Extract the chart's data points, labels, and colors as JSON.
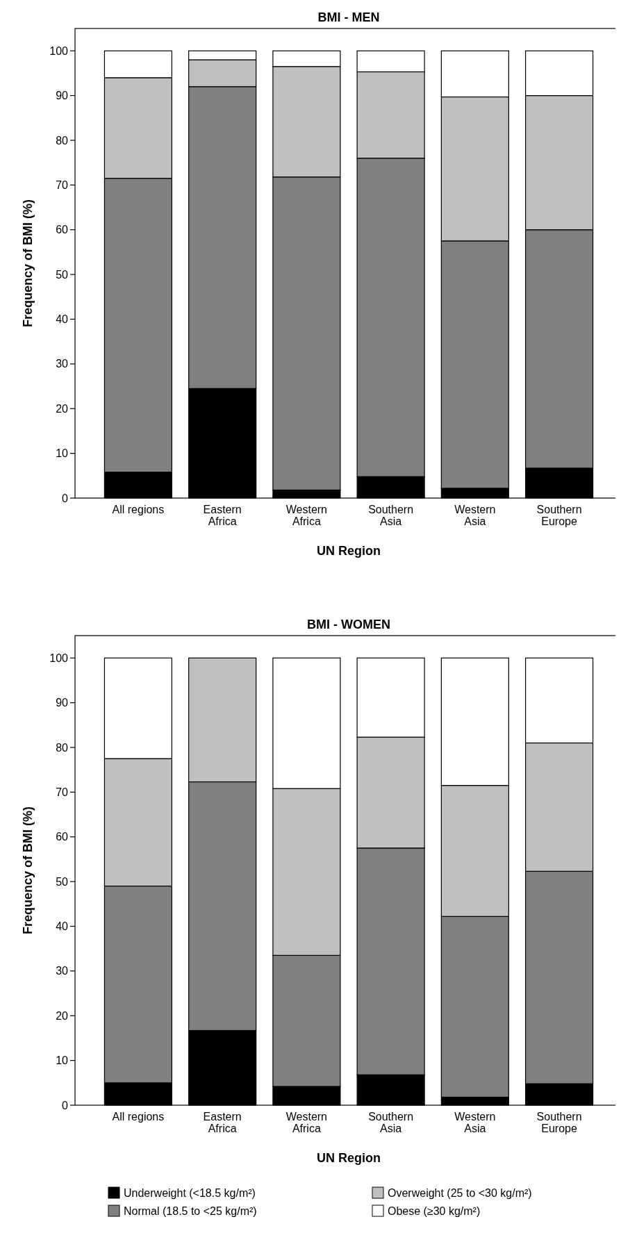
{
  "chart_data": [
    {
      "type": "bar",
      "title": "BMI - MEN",
      "xlabel": "UN Region",
      "ylabel": "Frequency of BMI (%)",
      "stacked": true,
      "categories": [
        "All regions",
        "Eastern\nAfrica",
        "Western\nAfrica",
        "Southern\nAsia",
        "Western\nAsia",
        "Southern\nEurope"
      ],
      "ylim": [
        0,
        105
      ],
      "yticks": [
        0,
        10,
        20,
        30,
        40,
        50,
        60,
        70,
        80,
        90,
        100
      ],
      "grid": false,
      "legend": false,
      "series": [
        {
          "color": "#000000",
          "values": [
            5.8,
            24.5,
            1.8,
            4.8,
            2.2,
            6.7
          ]
        },
        {
          "color": "#808080",
          "values": [
            65.7,
            67.5,
            70,
            71.2,
            55.3,
            53.3
          ]
        },
        {
          "color": "#c0c0c0",
          "values": [
            22.5,
            6,
            24.7,
            19.3,
            32.2,
            30
          ]
        },
        {
          "color": "#ffffff",
          "values": [
            6,
            2,
            3.5,
            4.7,
            10.3,
            10
          ]
        }
      ]
    },
    {
      "type": "bar",
      "title": "BMI - WOMEN",
      "xlabel": "UN Region",
      "ylabel": "Frequency of BMI (%)",
      "stacked": true,
      "categories": [
        "All regions",
        "Eastern\nAfrica",
        "Western\nAfrica",
        "Southern\nAsia",
        "Western\nAsia",
        "Southern\nEurope"
      ],
      "ylim": [
        0,
        105
      ],
      "yticks": [
        0,
        10,
        20,
        30,
        40,
        50,
        60,
        70,
        80,
        90,
        100
      ],
      "grid": false,
      "legend": "bottom",
      "series": [
        {
          "name": "Underweight (<18.5 kg/m²)",
          "color": "#000000",
          "values": [
            5,
            16.7,
            4.2,
            6.8,
            1.8,
            4.8
          ]
        },
        {
          "name": "Normal (18.5 to <25 kg/m²)",
          "color": "#808080",
          "values": [
            44,
            55.6,
            29.3,
            50.7,
            40.4,
            47.5
          ]
        },
        {
          "name": "Overweight (25 to <30 kg/m²)",
          "color": "#c0c0c0",
          "values": [
            28.5,
            27.7,
            37.3,
            24.8,
            29.3,
            28.7
          ]
        },
        {
          "name": "Obese (≥30 kg/m²)",
          "color": "#ffffff",
          "values": [
            22.5,
            0,
            29.2,
            17.7,
            28.5,
            19
          ]
        }
      ]
    }
  ]
}
